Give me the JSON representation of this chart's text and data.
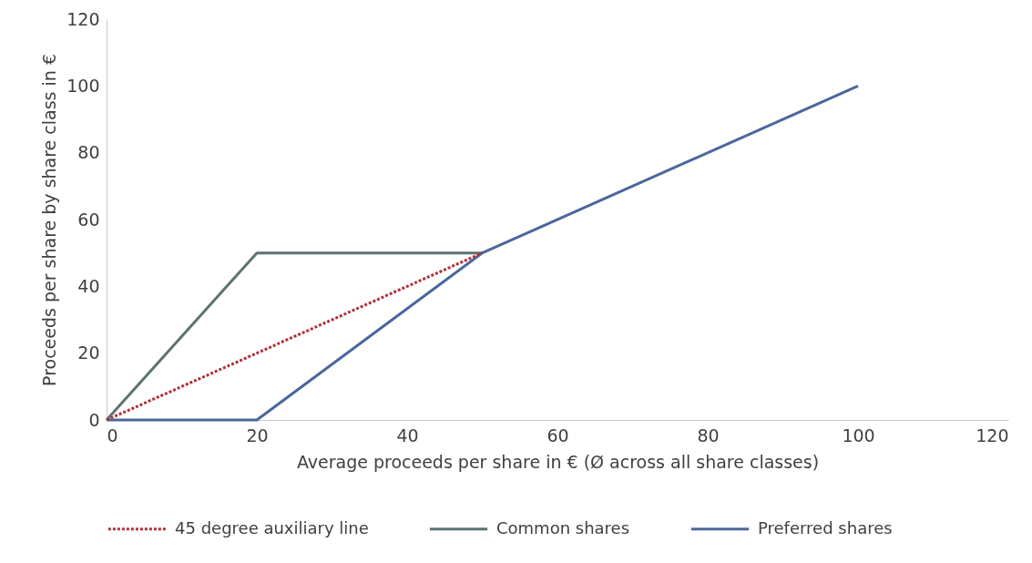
{
  "chart_data": {
    "type": "line",
    "xlabel": "Average proceeds per share in € (Ø across all share classes)",
    "ylabel": "Proceeds per share by share class in €",
    "xlim": [
      0,
      120
    ],
    "ylim": [
      0,
      120
    ],
    "xticks": [
      0,
      20,
      40,
      60,
      80,
      100,
      120
    ],
    "yticks": [
      0,
      20,
      40,
      60,
      80,
      100,
      120
    ],
    "legend": "bottom",
    "series": [
      {
        "name": "45 degree auxiliary line",
        "color": "#b0303c",
        "line_style": "dotted",
        "x": [
          0,
          50
        ],
        "values": [
          0,
          50
        ]
      },
      {
        "name": "Common shares",
        "color": "#5b7373",
        "line_style": "solid",
        "x": [
          0,
          20,
          50
        ],
        "values": [
          0,
          50,
          50
        ]
      },
      {
        "name": "Preferred shares",
        "color": "#4a679b",
        "line_style": "solid",
        "x": [
          0,
          20,
          50,
          100
        ],
        "values": [
          0,
          0,
          50,
          100
        ]
      }
    ]
  }
}
